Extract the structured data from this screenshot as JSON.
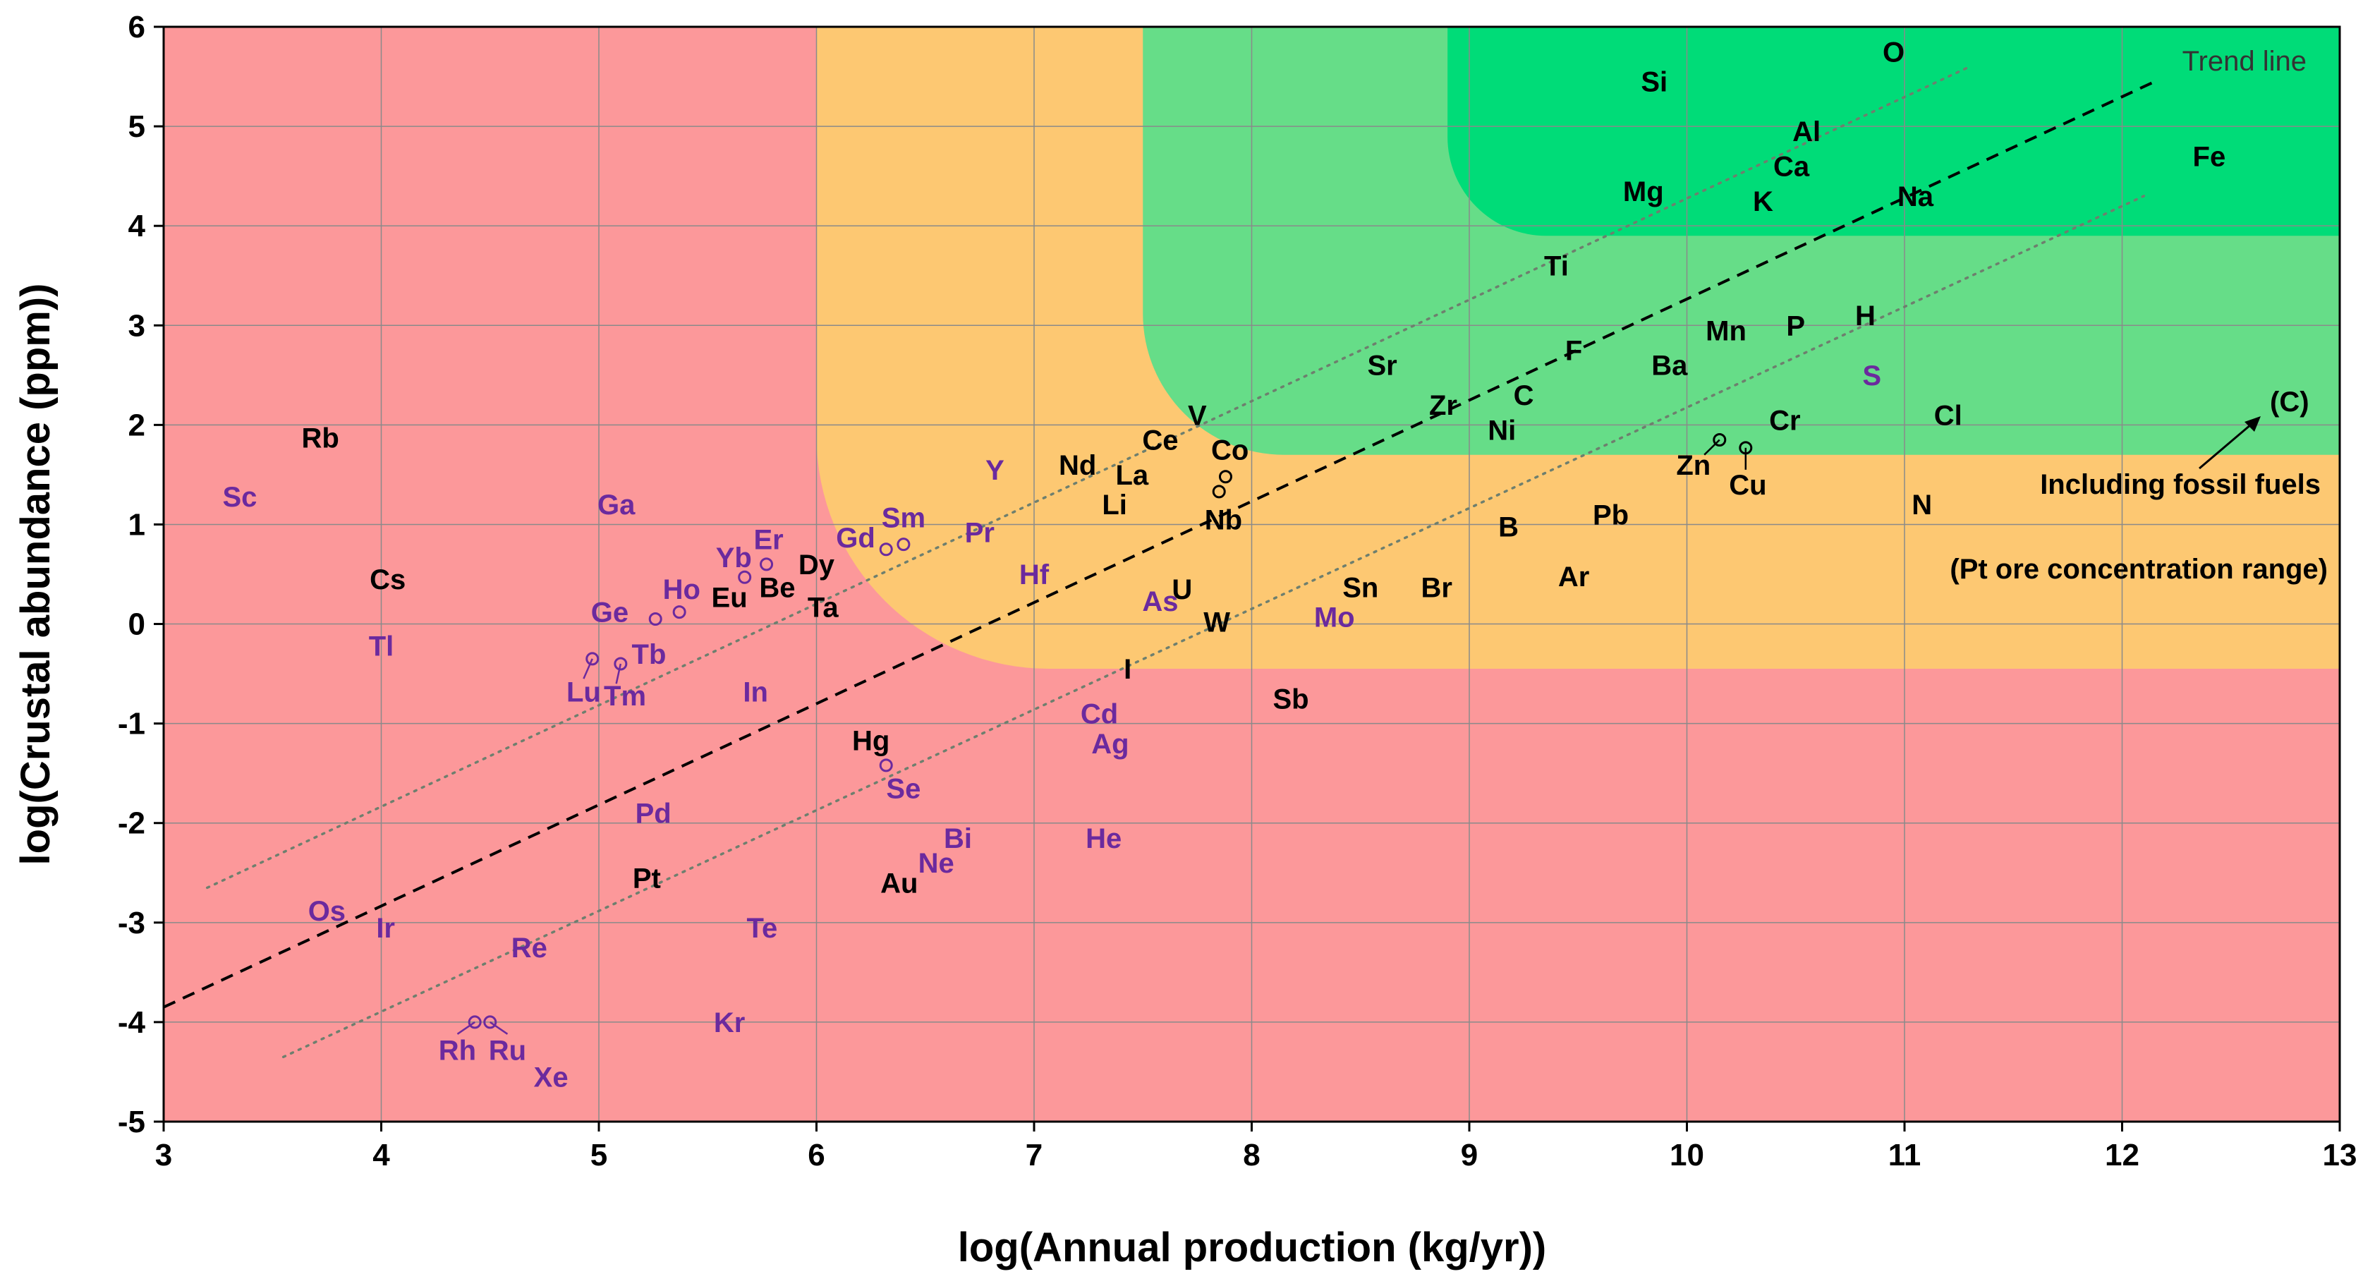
{
  "chart_data": {
    "type": "scatter",
    "title": "",
    "xlabel": "log(Annual production (kg/yr))",
    "ylabel": "log(Crustal abundance (ppm))",
    "xlim": [
      3,
      13
    ],
    "ylim": [
      -5,
      6
    ],
    "x_ticks": [
      "3",
      "4",
      "5",
      "6",
      "7",
      "8",
      "9",
      "10",
      "11",
      "12",
      "13"
    ],
    "y_ticks": [
      "-5",
      "-4",
      "-3",
      "-2",
      "-1",
      "0",
      "1",
      "2",
      "3",
      "4",
      "5",
      "6"
    ],
    "grid": true,
    "colors": {
      "red_zone": "#fc989a",
      "orange_zone": "#fdc872",
      "green_zone": "#66dd88",
      "dark_green_zone": "#00dc78",
      "label_black": "#000000",
      "label_purple": "#6b2a9e"
    },
    "zones": [
      {
        "name": "red",
        "x_from": 3,
        "y_from": -5
      },
      {
        "name": "orange",
        "x_from": 6,
        "y_from": -0.45
      },
      {
        "name": "green",
        "x_from": 7.5,
        "y_from": 1.7
      },
      {
        "name": "dark-green",
        "x_from": 8.9,
        "y_from": 3.9
      }
    ],
    "trend_lines": [
      {
        "name": "trend",
        "style": "dashed",
        "x1": 3,
        "y1": -3.85,
        "x2": 12.15,
        "y2": 5.45
      },
      {
        "name": "upper",
        "style": "dotted",
        "x1": 3.2,
        "y1": -2.65,
        "x2": 11.3,
        "y2": 5.6
      },
      {
        "name": "lower",
        "style": "dotted",
        "x1": 3.55,
        "y1": -4.35,
        "x2": 12.1,
        "y2": 4.3
      }
    ],
    "annotations": {
      "trend_line_label": "Trend line",
      "fossil_label": "Including fossil fuels",
      "carbon_label": "(C)",
      "pt_range_label": "(Pt ore concentration range)"
    },
    "points": [
      {
        "label": "O",
        "x": 10.95,
        "y": 5.75,
        "color": "black"
      },
      {
        "label": "Si",
        "x": 9.85,
        "y": 5.45,
        "color": "black"
      },
      {
        "label": "Al",
        "x": 10.55,
        "y": 4.95,
        "color": "black"
      },
      {
        "label": "Ca",
        "x": 10.48,
        "y": 4.6,
        "color": "black"
      },
      {
        "label": "Fe",
        "x": 12.4,
        "y": 4.7,
        "color": "black"
      },
      {
        "label": "Mg",
        "x": 9.8,
        "y": 4.35,
        "color": "black"
      },
      {
        "label": "K",
        "x": 10.35,
        "y": 4.25,
        "color": "black"
      },
      {
        "label": "Na",
        "x": 11.05,
        "y": 4.3,
        "color": "black"
      },
      {
        "label": "Ti",
        "x": 9.4,
        "y": 3.6,
        "color": "black"
      },
      {
        "label": "Mn",
        "x": 10.18,
        "y": 2.95,
        "color": "black"
      },
      {
        "label": "P",
        "x": 10.5,
        "y": 3.0,
        "color": "black"
      },
      {
        "label": "H",
        "x": 10.82,
        "y": 3.1,
        "color": "black"
      },
      {
        "label": "F",
        "x": 9.48,
        "y": 2.75,
        "color": "black"
      },
      {
        "label": "Sr",
        "x": 8.6,
        "y": 2.6,
        "color": "black"
      },
      {
        "label": "Ba",
        "x": 9.92,
        "y": 2.6,
        "color": "black"
      },
      {
        "label": "S",
        "x": 10.85,
        "y": 2.5,
        "color": "purple"
      },
      {
        "label": "C",
        "x": 9.25,
        "y": 2.3,
        "color": "black"
      },
      {
        "label": "Zr",
        "x": 8.88,
        "y": 2.2,
        "color": "black"
      },
      {
        "label": "Ni",
        "x": 9.15,
        "y": 1.95,
        "color": "black"
      },
      {
        "label": "Cl",
        "x": 11.2,
        "y": 2.1,
        "color": "black"
      },
      {
        "label": "Cr",
        "x": 10.45,
        "y": 2.05,
        "color": "black"
      },
      {
        "label": "V",
        "x": 7.75,
        "y": 2.1,
        "color": "black"
      },
      {
        "label": "Ce",
        "x": 7.58,
        "y": 1.85,
        "color": "black"
      },
      {
        "label": "Co",
        "x": 7.9,
        "y": 1.75,
        "color": "black"
      },
      {
        "label": "Zn",
        "x": 10.03,
        "y": 1.6,
        "color": "black"
      },
      {
        "label": "Cu",
        "x": 10.28,
        "y": 1.4,
        "color": "black"
      },
      {
        "label": "Y",
        "x": 6.82,
        "y": 1.55,
        "color": "purple"
      },
      {
        "label": "Nd",
        "x": 7.2,
        "y": 1.6,
        "color": "black"
      },
      {
        "label": "La",
        "x": 7.45,
        "y": 1.5,
        "color": "black"
      },
      {
        "label": "Li",
        "x": 7.37,
        "y": 1.2,
        "color": "black"
      },
      {
        "label": "Nb",
        "x": 7.87,
        "y": 1.05,
        "color": "black"
      },
      {
        "label": "N",
        "x": 11.08,
        "y": 1.2,
        "color": "black"
      },
      {
        "label": "B",
        "x": 9.18,
        "y": 0.98,
        "color": "black"
      },
      {
        "label": "Pb",
        "x": 9.65,
        "y": 1.1,
        "color": "black"
      },
      {
        "label": "Rb",
        "x": 3.72,
        "y": 1.87,
        "color": "black"
      },
      {
        "label": "Sc",
        "x": 3.35,
        "y": 1.28,
        "color": "purple"
      },
      {
        "label": "Ga",
        "x": 5.08,
        "y": 1.2,
        "color": "purple"
      },
      {
        "label": "Sm",
        "x": 6.4,
        "y": 1.07,
        "color": "purple"
      },
      {
        "label": "Gd",
        "x": 6.18,
        "y": 0.87,
        "color": "purple"
      },
      {
        "label": "Pr",
        "x": 6.75,
        "y": 0.92,
        "color": "purple"
      },
      {
        "label": "Er",
        "x": 5.78,
        "y": 0.85,
        "color": "purple"
      },
      {
        "label": "Yb",
        "x": 5.62,
        "y": 0.67,
        "color": "purple"
      },
      {
        "label": "Dy",
        "x": 6.0,
        "y": 0.6,
        "color": "black"
      },
      {
        "label": "Cs",
        "x": 4.03,
        "y": 0.45,
        "color": "black"
      },
      {
        "label": "Hf",
        "x": 7.0,
        "y": 0.5,
        "color": "purple"
      },
      {
        "label": "Ho",
        "x": 5.38,
        "y": 0.35,
        "color": "purple"
      },
      {
        "label": "Be",
        "x": 5.82,
        "y": 0.37,
        "color": "black"
      },
      {
        "label": "Eu",
        "x": 5.6,
        "y": 0.27,
        "color": "black"
      },
      {
        "label": "U",
        "x": 7.68,
        "y": 0.35,
        "color": "black"
      },
      {
        "label": "As",
        "x": 7.58,
        "y": 0.23,
        "color": "purple"
      },
      {
        "label": "Ar",
        "x": 9.48,
        "y": 0.48,
        "color": "black"
      },
      {
        "label": "Sn",
        "x": 8.5,
        "y": 0.37,
        "color": "black"
      },
      {
        "label": "Br",
        "x": 8.85,
        "y": 0.37,
        "color": "black"
      },
      {
        "label": "Ta",
        "x": 6.03,
        "y": 0.17,
        "color": "black"
      },
      {
        "label": "Ge",
        "x": 5.05,
        "y": 0.12,
        "color": "purple"
      },
      {
        "label": "W",
        "x": 7.84,
        "y": 0.02,
        "color": "black"
      },
      {
        "label": "Mo",
        "x": 8.38,
        "y": 0.07,
        "color": "purple"
      },
      {
        "label": "Tl",
        "x": 4.0,
        "y": -0.22,
        "color": "purple"
      },
      {
        "label": "Tb",
        "x": 5.23,
        "y": -0.3,
        "color": "purple"
      },
      {
        "label": "I",
        "x": 7.43,
        "y": -0.45,
        "color": "black"
      },
      {
        "label": "Lu",
        "x": 4.93,
        "y": -0.68,
        "color": "purple"
      },
      {
        "label": "Tm",
        "x": 5.12,
        "y": -0.72,
        "color": "purple"
      },
      {
        "label": "In",
        "x": 5.72,
        "y": -0.68,
        "color": "purple"
      },
      {
        "label": "Sb",
        "x": 8.18,
        "y": -0.75,
        "color": "black"
      },
      {
        "label": "Cd",
        "x": 7.3,
        "y": -0.9,
        "color": "purple"
      },
      {
        "label": "Hg",
        "x": 6.25,
        "y": -1.17,
        "color": "black"
      },
      {
        "label": "Ag",
        "x": 7.35,
        "y": -1.2,
        "color": "purple"
      },
      {
        "label": "Se",
        "x": 6.4,
        "y": -1.65,
        "color": "purple"
      },
      {
        "label": "Pd",
        "x": 5.25,
        "y": -1.9,
        "color": "purple"
      },
      {
        "label": "Bi",
        "x": 6.65,
        "y": -2.15,
        "color": "purple"
      },
      {
        "label": "He",
        "x": 7.32,
        "y": -2.15,
        "color": "purple"
      },
      {
        "label": "Ne",
        "x": 6.55,
        "y": -2.4,
        "color": "purple"
      },
      {
        "label": "Pt",
        "x": 5.22,
        "y": -2.55,
        "color": "black"
      },
      {
        "label": "Au",
        "x": 6.38,
        "y": -2.6,
        "color": "black"
      },
      {
        "label": "Os",
        "x": 3.75,
        "y": -2.88,
        "color": "purple"
      },
      {
        "label": "Ir",
        "x": 4.02,
        "y": -3.05,
        "color": "purple"
      },
      {
        "label": "Re",
        "x": 4.68,
        "y": -3.25,
        "color": "purple"
      },
      {
        "label": "Te",
        "x": 5.75,
        "y": -3.05,
        "color": "purple"
      },
      {
        "label": "Kr",
        "x": 5.6,
        "y": -4.0,
        "color": "purple"
      },
      {
        "label": "Rh",
        "x": 4.35,
        "y": -4.28,
        "color": "purple"
      },
      {
        "label": "Ru",
        "x": 4.58,
        "y": -4.28,
        "color": "purple"
      },
      {
        "label": "Xe",
        "x": 4.78,
        "y": -4.55,
        "color": "purple"
      }
    ]
  }
}
